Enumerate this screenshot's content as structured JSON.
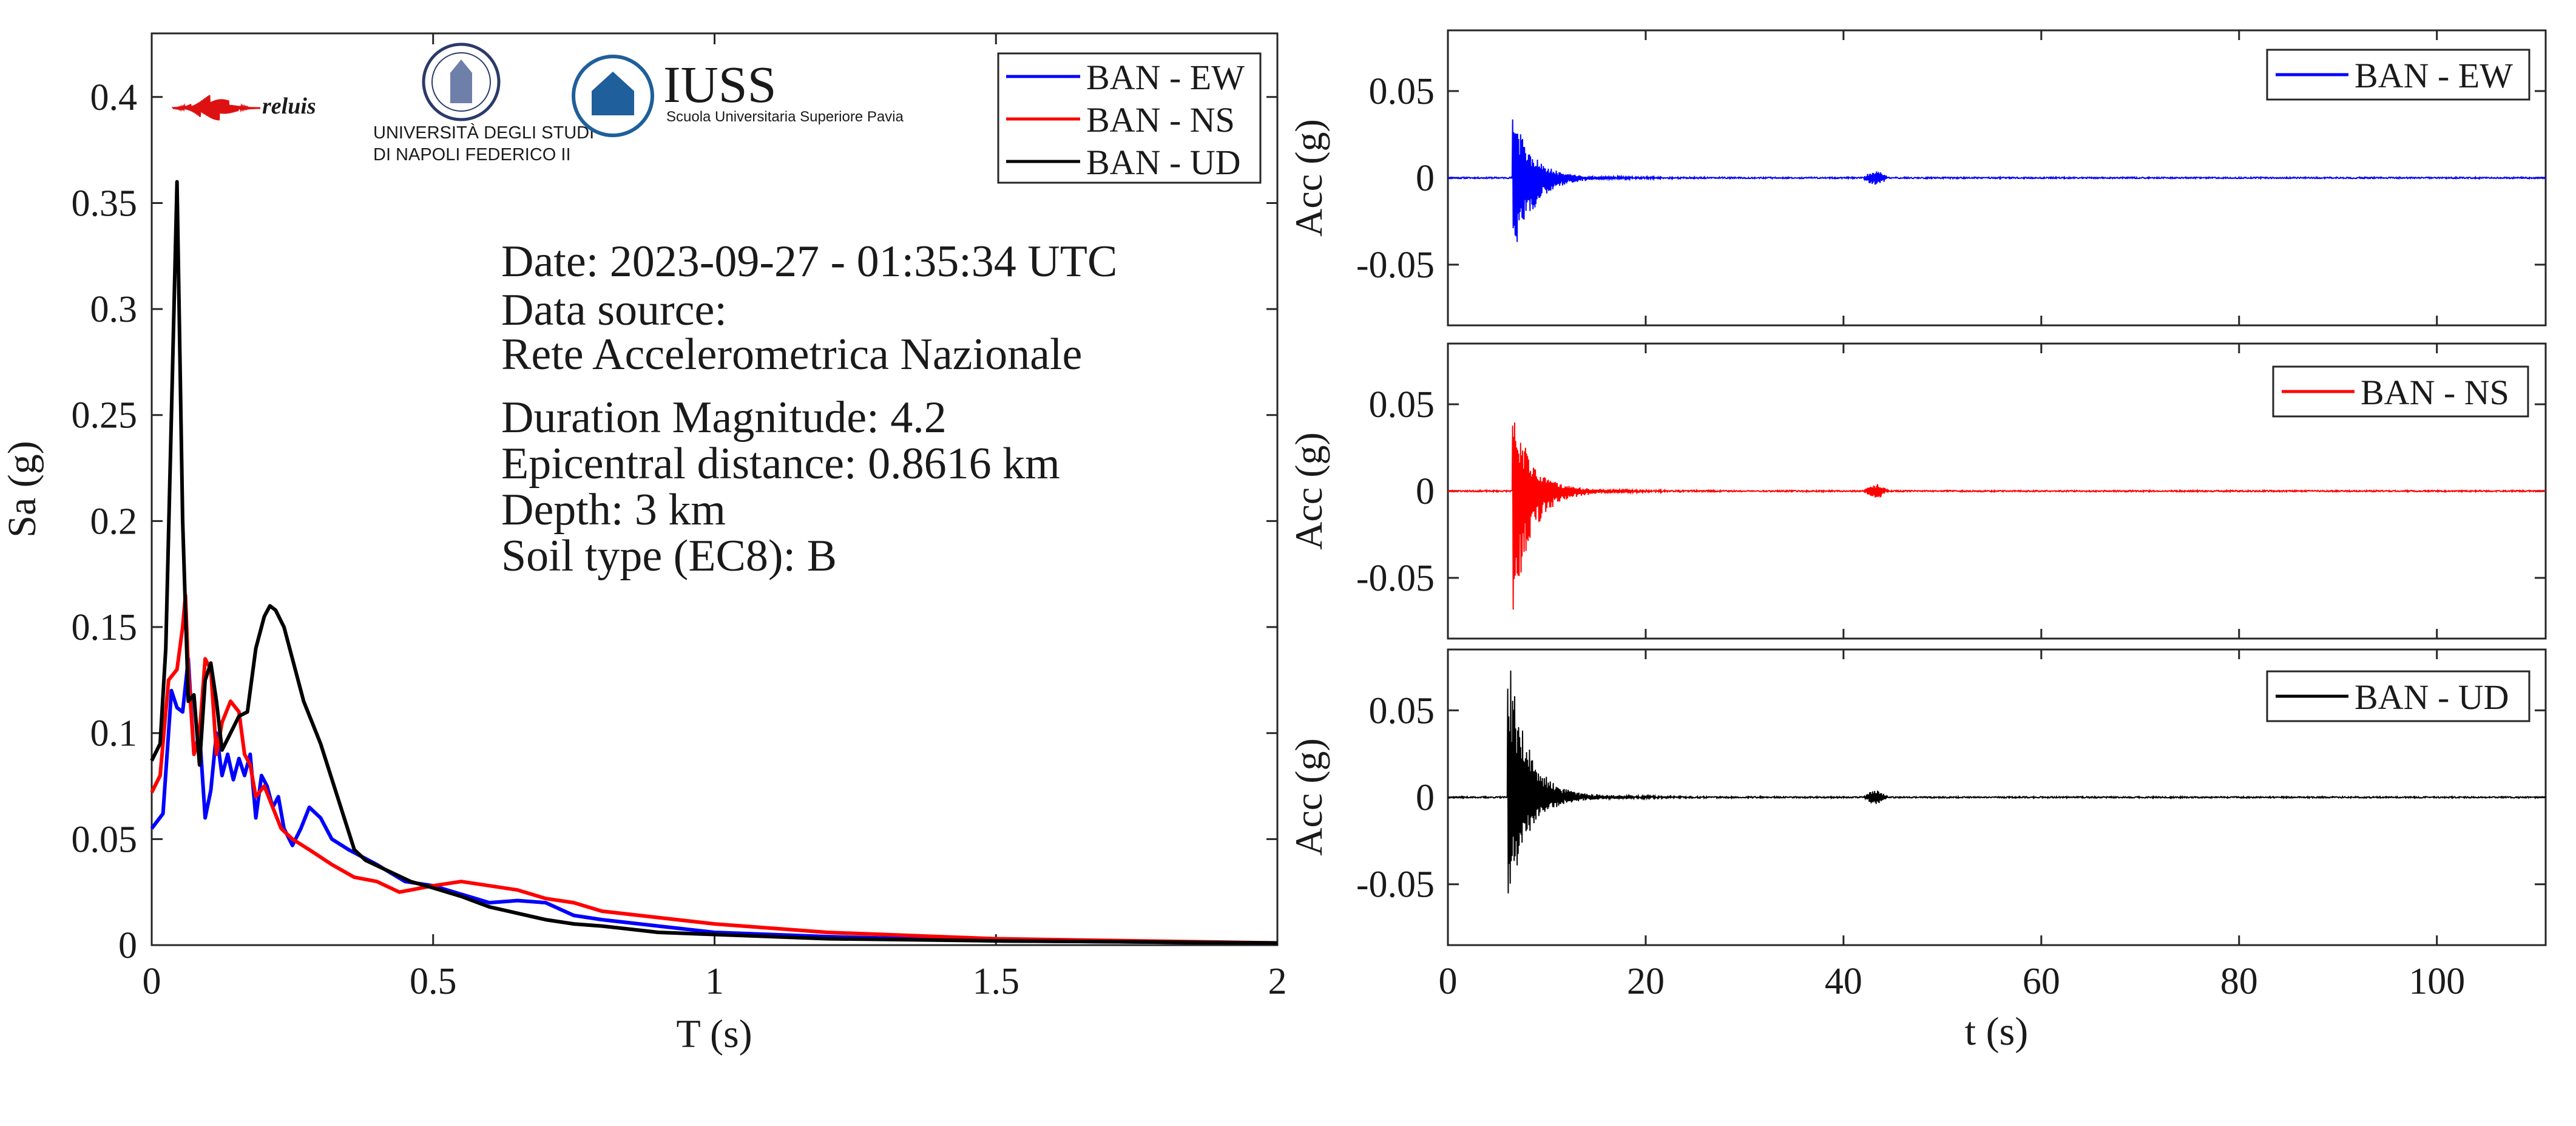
{
  "chart_data": [
    {
      "type": "line",
      "ylabel": "Sa (g)",
      "xlabel": "T (s)",
      "xlim": [
        0,
        2
      ],
      "ylim": [
        0,
        0.43
      ],
      "x_ticks": [
        0,
        0.5,
        1,
        1.5,
        2
      ],
      "x_tick_labels": [
        "0",
        "0.5",
        "1",
        "1.5",
        "2"
      ],
      "y_ticks": [
        0,
        0.05,
        0.1,
        0.15,
        0.2,
        0.25,
        0.3,
        0.35,
        0.4
      ],
      "y_tick_labels": [
        "0",
        "0.05",
        "0.1",
        "0.15",
        "0.2",
        "0.25",
        "0.3",
        "0.35",
        "0.4"
      ],
      "legend_position": "top-right",
      "series": [
        {
          "name": "BAN - EW",
          "color": "#0000ff",
          "x": [
            0,
            0.02,
            0.035,
            0.045,
            0.055,
            0.065,
            0.075,
            0.085,
            0.095,
            0.105,
            0.115,
            0.125,
            0.135,
            0.145,
            0.155,
            0.165,
            0.175,
            0.185,
            0.195,
            0.205,
            0.215,
            0.225,
            0.235,
            0.25,
            0.265,
            0.28,
            0.3,
            0.32,
            0.35,
            0.4,
            0.45,
            0.5,
            0.55,
            0.6,
            0.65,
            0.7,
            0.75,
            0.8,
            0.9,
            1.0,
            1.2,
            1.5,
            2.0
          ],
          "y": [
            0.055,
            0.062,
            0.12,
            0.112,
            0.11,
            0.135,
            0.09,
            0.1,
            0.06,
            0.073,
            0.1,
            0.08,
            0.09,
            0.078,
            0.088,
            0.08,
            0.09,
            0.06,
            0.08,
            0.075,
            0.065,
            0.07,
            0.055,
            0.047,
            0.055,
            0.065,
            0.06,
            0.05,
            0.045,
            0.038,
            0.03,
            0.028,
            0.024,
            0.02,
            0.021,
            0.02,
            0.014,
            0.012,
            0.009,
            0.006,
            0.004,
            0.002,
            0.001
          ]
        },
        {
          "name": "BAN - NS",
          "color": "#ff0000",
          "x": [
            0,
            0.015,
            0.03,
            0.045,
            0.055,
            0.06,
            0.065,
            0.075,
            0.085,
            0.095,
            0.105,
            0.115,
            0.125,
            0.14,
            0.155,
            0.165,
            0.175,
            0.185,
            0.2,
            0.215,
            0.23,
            0.25,
            0.28,
            0.32,
            0.36,
            0.4,
            0.44,
            0.5,
            0.55,
            0.6,
            0.65,
            0.7,
            0.75,
            0.8,
            0.9,
            1.0,
            1.2,
            1.5,
            2.0
          ],
          "y": [
            0.072,
            0.08,
            0.125,
            0.13,
            0.15,
            0.165,
            0.13,
            0.09,
            0.1,
            0.135,
            0.13,
            0.09,
            0.105,
            0.115,
            0.11,
            0.09,
            0.085,
            0.07,
            0.075,
            0.065,
            0.055,
            0.05,
            0.045,
            0.038,
            0.032,
            0.03,
            0.025,
            0.028,
            0.03,
            0.028,
            0.026,
            0.022,
            0.02,
            0.016,
            0.013,
            0.01,
            0.006,
            0.003,
            0.001
          ]
        },
        {
          "name": "BAN - UD",
          "color": "#000000",
          "x": [
            0,
            0.015,
            0.025,
            0.035,
            0.045,
            0.055,
            0.065,
            0.075,
            0.085,
            0.095,
            0.105,
            0.115,
            0.125,
            0.14,
            0.155,
            0.17,
            0.185,
            0.2,
            0.21,
            0.22,
            0.235,
            0.25,
            0.27,
            0.3,
            0.33,
            0.36,
            0.38,
            0.42,
            0.46,
            0.5,
            0.55,
            0.6,
            0.65,
            0.7,
            0.75,
            0.8,
            0.9,
            1.0,
            1.2,
            1.5,
            2.0
          ],
          "y": [
            0.087,
            0.095,
            0.14,
            0.25,
            0.36,
            0.2,
            0.115,
            0.118,
            0.085,
            0.125,
            0.133,
            0.115,
            0.092,
            0.1,
            0.108,
            0.11,
            0.14,
            0.155,
            0.16,
            0.158,
            0.15,
            0.135,
            0.115,
            0.095,
            0.07,
            0.045,
            0.04,
            0.035,
            0.03,
            0.027,
            0.023,
            0.018,
            0.015,
            0.012,
            0.01,
            0.009,
            0.006,
            0.005,
            0.003,
            0.002,
            0.001
          ]
        }
      ],
      "annotation_lines": [
        "Date: 2023-09-27 - 01:35:34 UTC",
        "Data source:",
        "Rete Accelerometrica Nazionale",
        "Duration Magnitude: 4.2",
        "Epicentral distance: 0.8616 km",
        "Depth: 3 km",
        "Soil type (EC8): B"
      ],
      "logos": [
        "reluis",
        "Università degli Studi di Napoli Federico II",
        "IUSS"
      ],
      "logo_text": {
        "reluis": "reluis",
        "unina_line1": "UNIVERSITÀ DEGLI STUDI",
        "unina_line2": "DI NAPOLI FEDERICO II",
        "iuss_title": "IUSS",
        "iuss_subtitle": "Scuola Universitaria Superiore Pavia"
      }
    },
    {
      "type": "line",
      "ylabel": "Acc (g)",
      "xlim": [
        0,
        111
      ],
      "ylim": [
        -0.085,
        0.085
      ],
      "y_tick_labels": [
        "0.05",
        "0",
        "-0.05"
      ],
      "legend_position": "top-right",
      "series": [
        {
          "name": "BAN - EW",
          "color": "#0000ff",
          "onset_s": 6.5,
          "peak_g": 0.038,
          "trough_g": -0.055,
          "coda_end_s": 20,
          "secondary_burst_s": 42
        }
      ]
    },
    {
      "type": "line",
      "ylabel": "Acc (g)",
      "xlim": [
        0,
        111
      ],
      "ylim": [
        -0.085,
        0.085
      ],
      "y_tick_labels": [
        "0.05",
        "0",
        "-0.05"
      ],
      "legend_position": "top-right",
      "series": [
        {
          "name": "BAN - NS",
          "color": "#ff0000",
          "onset_s": 6.5,
          "peak_g": 0.049,
          "trough_g": -0.072,
          "coda_end_s": 20,
          "secondary_burst_s": 42
        }
      ]
    },
    {
      "type": "line",
      "ylabel": "Acc (g)",
      "xlabel": "t (s)",
      "xlim": [
        0,
        111
      ],
      "ylim": [
        -0.085,
        0.085
      ],
      "x_ticks": [
        0,
        20,
        40,
        60,
        80,
        100
      ],
      "x_tick_labels": [
        "0",
        "20",
        "40",
        "60",
        "80",
        "100"
      ],
      "y_tick_labels": [
        "0.05",
        "0",
        "-0.05"
      ],
      "legend_position": "top-right",
      "series": [
        {
          "name": "BAN - UD",
          "color": "#000000",
          "onset_s": 6.0,
          "peak_g": 0.085,
          "trough_g": -0.063,
          "coda_end_s": 20,
          "secondary_burst_s": 42
        }
      ]
    }
  ]
}
